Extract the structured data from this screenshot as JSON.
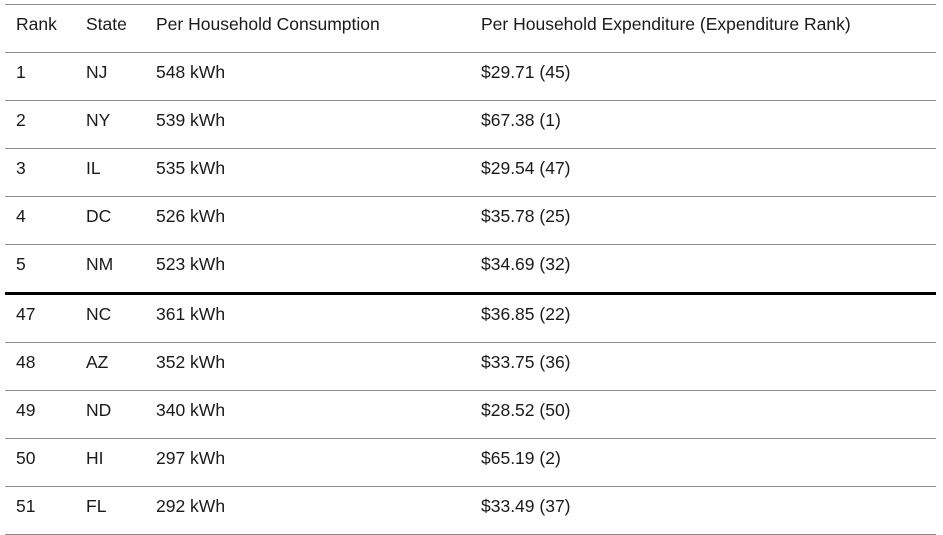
{
  "chart_data": {
    "type": "table",
    "columns": [
      "Rank",
      "State",
      "Per Household Consumption",
      "Per Household Expenditure (Expenditure Rank)"
    ],
    "rows": [
      [
        "1",
        "NJ",
        "548 kWh",
        "$29.71 (45)"
      ],
      [
        "2",
        "NY",
        "539 kWh",
        "$67.38 (1)"
      ],
      [
        "3",
        "IL",
        "535 kWh",
        "$29.54 (47)"
      ],
      [
        "4",
        "DC",
        "526 kWh",
        "$35.78 (25)"
      ],
      [
        "5",
        "NM",
        "523 kWh",
        "$34.69 (32)"
      ],
      [
        "47",
        "NC",
        "361 kWh",
        "$36.85 (22)"
      ],
      [
        "48",
        "AZ",
        "352 kWh",
        "$33.75 (36)"
      ],
      [
        "49",
        "ND",
        "340 kWh",
        "$28.52 (50)"
      ],
      [
        "50",
        "HI",
        "297 kWh",
        "$65.19 (2)"
      ],
      [
        "51",
        "FL",
        "292 kWh",
        "$33.49 (37)"
      ]
    ],
    "layout": {
      "section_break_before_rank": "47",
      "grid": "horizontal-rules-only",
      "header_weight": "regular"
    }
  },
  "colors": {
    "text": "#1a1a1a",
    "line": "#8c8c8c",
    "divider": "#000000",
    "background": "#ffffff"
  }
}
